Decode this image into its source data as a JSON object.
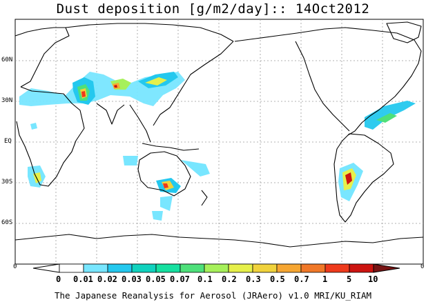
{
  "title": "Dust deposition [g/m2/day]:: 14Oct2012",
  "lat_labels": [
    "60N",
    "30N",
    "EQ",
    "30S",
    "60S"
  ],
  "lon_edge_labels": {
    "left": "0",
    "right": "0"
  },
  "colorbar": {
    "labels": [
      "0",
      "0.01",
      "0.02",
      "0.03",
      "0.05",
      "0.07",
      "0.1",
      "0.2",
      "0.3",
      "0.5",
      "0.7",
      "1",
      "5",
      "10"
    ],
    "colors": [
      "#ffffff",
      "#78e6ff",
      "#24c8ee",
      "#10d2be",
      "#16e0a0",
      "#4ee07a",
      "#a6f05a",
      "#e6f04a",
      "#f0d23c",
      "#f6a632",
      "#f07828",
      "#ee3a1c",
      "#cc1410",
      "#a00a0a",
      "#781414"
    ]
  },
  "credit": "The Japanese Reanalysis for Aerosol (JRAero) v1.0 MRI/KU_RIAM"
}
